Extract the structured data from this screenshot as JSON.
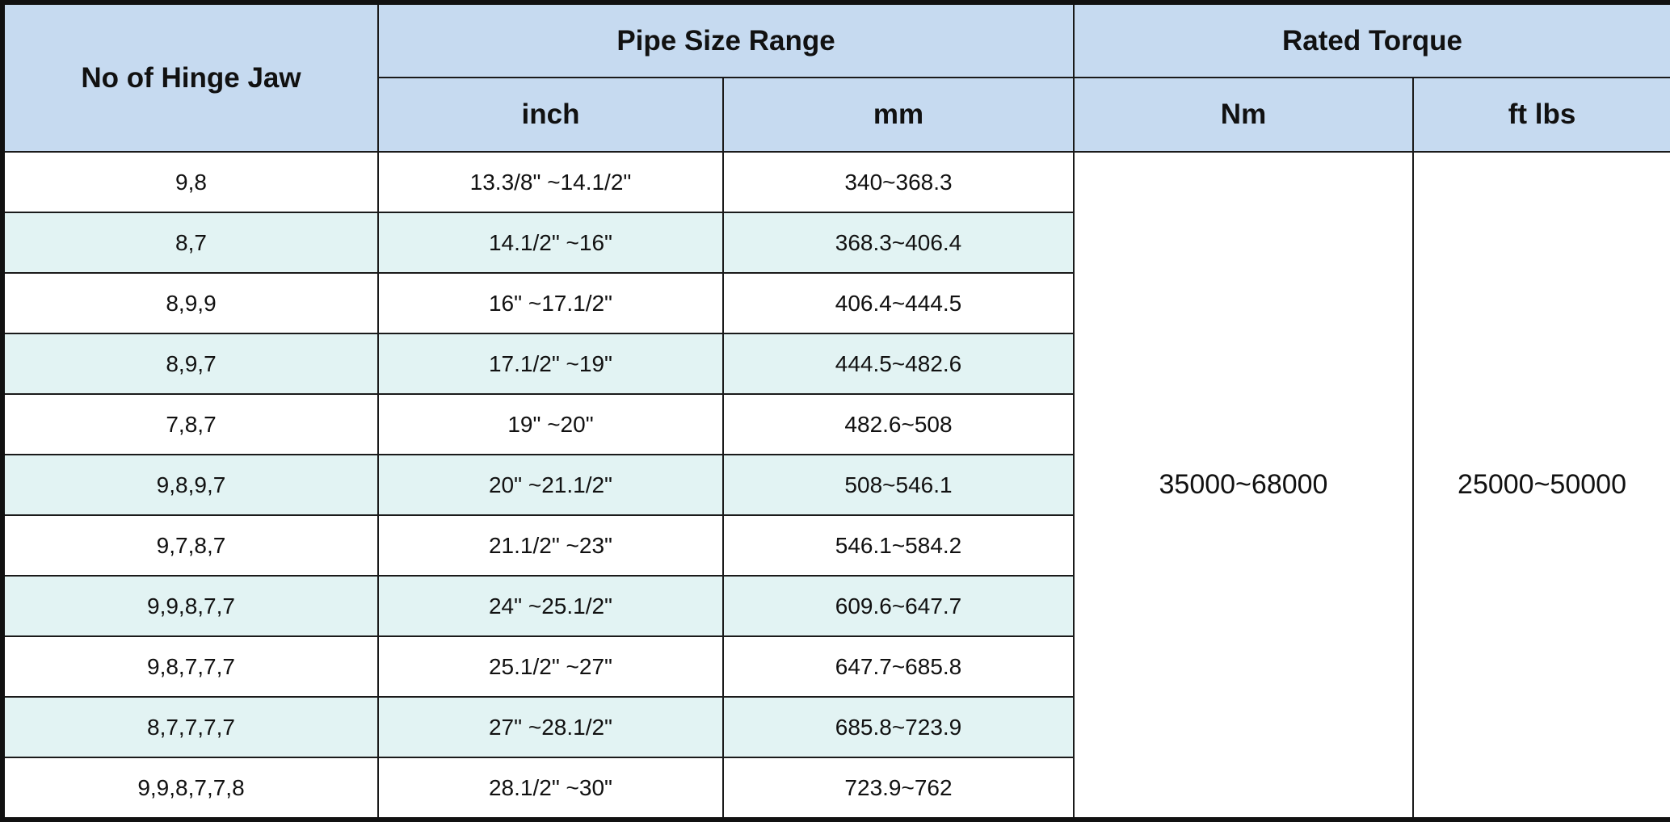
{
  "header": {
    "hinge_jaw": "No of Hinge Jaw",
    "pipe_size_range": "Pipe Size Range",
    "rated_torque": "Rated Torque",
    "inch": "inch",
    "mm": "mm",
    "nm": "Nm",
    "ft_lbs": "ft lbs"
  },
  "rows": [
    {
      "jaw": "9,8",
      "inch": "13.3/8\" ~14.1/2\"",
      "mm": "340~368.3"
    },
    {
      "jaw": "8,7",
      "inch": "14.1/2\" ~16\"",
      "mm": "368.3~406.4"
    },
    {
      "jaw": "8,9,9",
      "inch": "16\" ~17.1/2\"",
      "mm": "406.4~444.5"
    },
    {
      "jaw": "8,9,7",
      "inch": "17.1/2\" ~19\"",
      "mm": "444.5~482.6"
    },
    {
      "jaw": "7,8,7",
      "inch": "19\" ~20\"",
      "mm": "482.6~508"
    },
    {
      "jaw": "9,8,9,7",
      "inch": "20\" ~21.1/2\"",
      "mm": "508~546.1"
    },
    {
      "jaw": "9,7,8,7",
      "inch": "21.1/2\" ~23\"",
      "mm": "546.1~584.2"
    },
    {
      "jaw": "9,9,8,7,7",
      "inch": "24\" ~25.1/2\"",
      "mm": "609.6~647.7"
    },
    {
      "jaw": "9,8,7,7,7",
      "inch": "25.1/2\" ~27\"",
      "mm": "647.7~685.8"
    },
    {
      "jaw": "8,7,7,7,7",
      "inch": "27\" ~28.1/2\"",
      "mm": "685.8~723.9"
    },
    {
      "jaw": "9,9,8,7,7,8",
      "inch": "28.1/2\" ~30\"",
      "mm": "723.9~762"
    }
  ],
  "torque": {
    "nm": "35000~68000",
    "ft_lbs": "25000~50000"
  },
  "colors": {
    "header_bg": "#c6daf0",
    "alt_row_bg": "#e2f3f3",
    "border": "#111111"
  }
}
